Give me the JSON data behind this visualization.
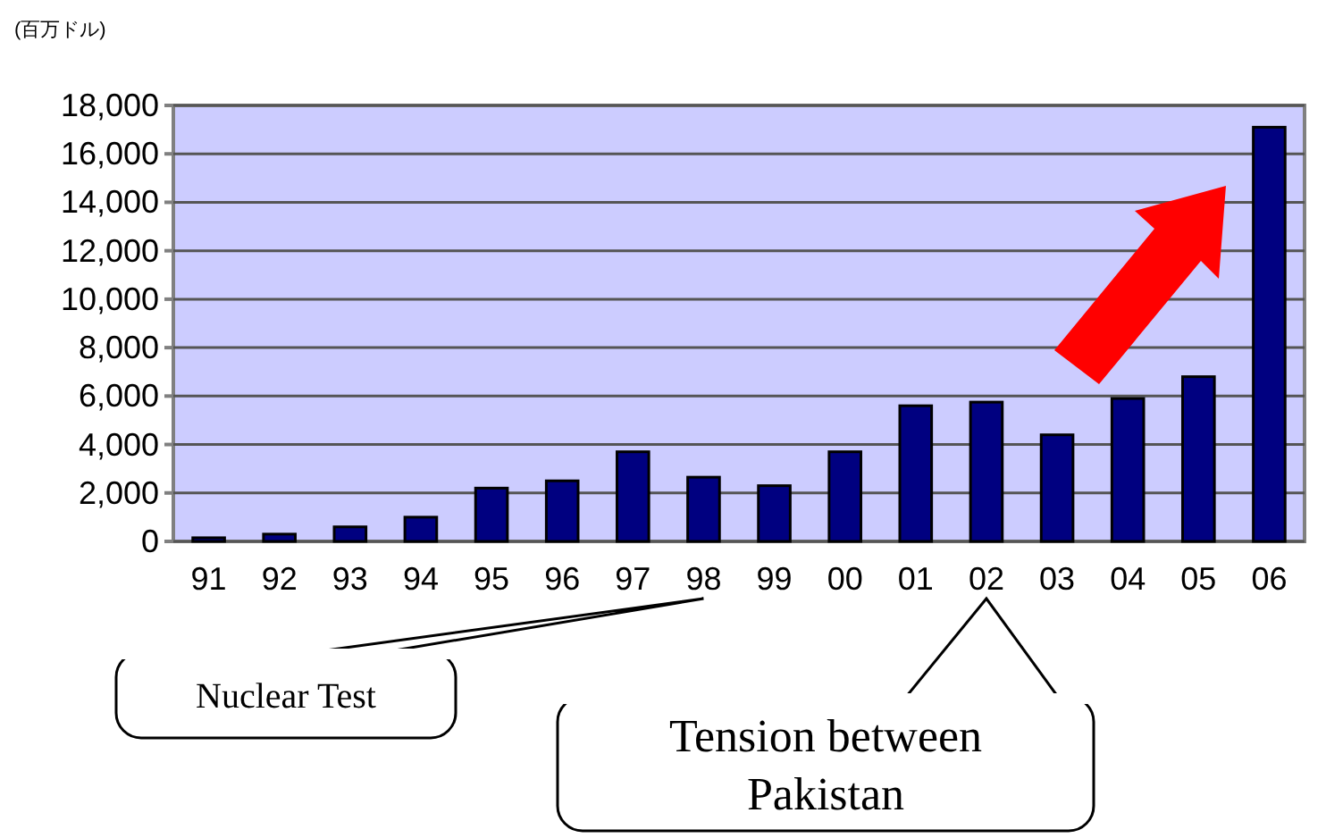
{
  "chart_data": {
    "type": "bar",
    "ylabel": "(百万ドル)",
    "categories": [
      "91",
      "92",
      "93",
      "94",
      "95",
      "96",
      "97",
      "98",
      "99",
      "00",
      "01",
      "02",
      "03",
      "04",
      "05",
      "06"
    ],
    "series": [
      {
        "color": "#000080",
        "values": [
          150,
          300,
          600,
          1000,
          2200,
          2500,
          3700,
          2650,
          2300,
          3700,
          5600,
          5750,
          4400,
          5900,
          6800,
          17100
        ]
      }
    ],
    "ylim": [
      0,
      18000
    ],
    "yticks": [
      {
        "value": 0,
        "label": "0"
      },
      {
        "value": 2000,
        "label": "2,000"
      },
      {
        "value": 4000,
        "label": "4,000"
      },
      {
        "value": 6000,
        "label": "6,000"
      },
      {
        "value": 8000,
        "label": "8,000"
      },
      {
        "value": 10000,
        "label": "10,000"
      },
      {
        "value": 12000,
        "label": "12,000"
      },
      {
        "value": 14000,
        "label": "14,000"
      },
      {
        "value": 16000,
        "label": "16,000"
      },
      {
        "value": 18000,
        "label": "18,000"
      }
    ],
    "grid": "y",
    "annotations": [
      "Nuclear Test",
      "Tension between Pakistan"
    ]
  }
}
